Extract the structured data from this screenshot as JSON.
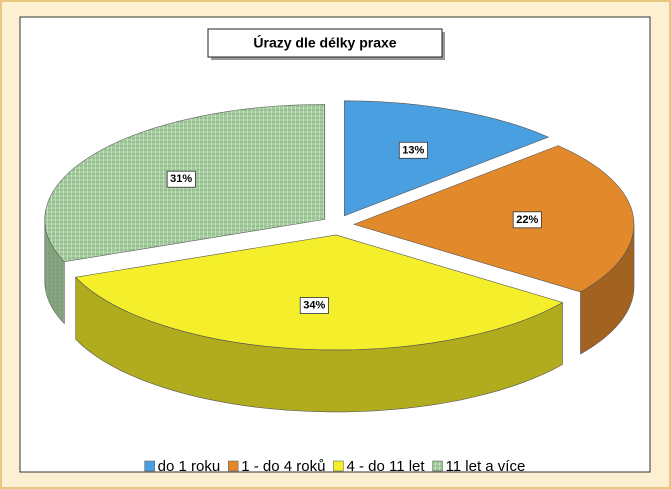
{
  "chart_data": {
    "type": "pie3d",
    "title": "Úrazy dle délky praxe",
    "categories": [
      "do 1 roku",
      "1 - do 4 roků",
      "4 - do 11 let",
      "11 let a více"
    ],
    "values": [
      13,
      22,
      34,
      31
    ],
    "value_labels": [
      "13%",
      "22%",
      "34%",
      "31%"
    ],
    "colors": [
      "#4a9fe0",
      "#e2892c",
      "#f4ef2a",
      "#c9e8c2"
    ],
    "hatch": [
      false,
      false,
      false,
      true
    ],
    "legend": "bottom"
  }
}
